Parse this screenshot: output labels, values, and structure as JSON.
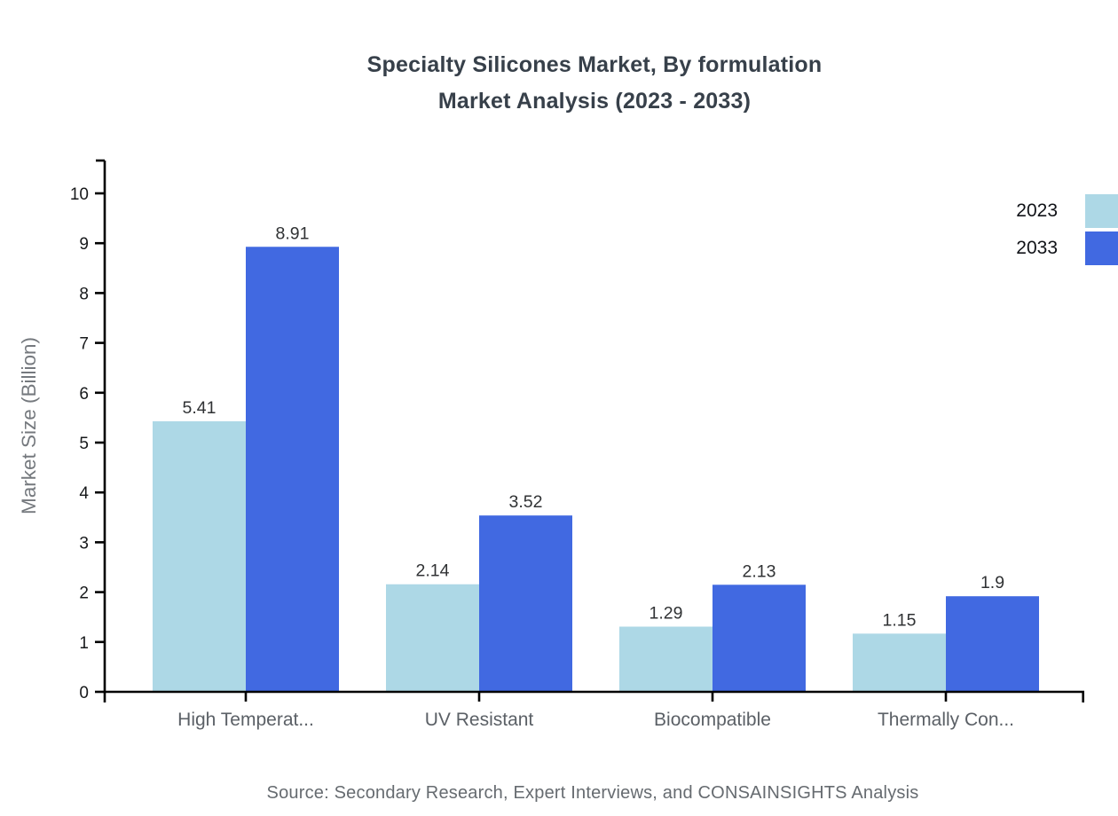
{
  "title": {
    "line1": "Specialty Silicones Market, By formulation",
    "line2": "Market Analysis (2023 - 2033)"
  },
  "source": "Source: Secondary Research, Expert Interviews, and CONSAINSIGHTS Analysis",
  "chart_data": {
    "type": "bar",
    "categories": [
      "High Temperat...",
      "UV Resistant",
      "Biocompatible",
      "Thermally Con..."
    ],
    "series": [
      {
        "name": "2023",
        "color": "#ADD8E6",
        "values": [
          5.41,
          2.14,
          1.29,
          1.15
        ]
      },
      {
        "name": "2033",
        "color": "#4169E1",
        "values": [
          8.91,
          3.52,
          2.13,
          1.9
        ]
      }
    ],
    "value_labels": [
      "5.41",
      "2.14",
      "1.29",
      "1.15",
      "8.91",
      "3.52",
      "2.13",
      "1.9"
    ],
    "ylabel": "Market Size (Billion)",
    "xlabel": "",
    "ylim": [
      0,
      10
    ],
    "y_tick_step": 1,
    "y_tick_labels": [
      "0",
      "1",
      "2",
      "3",
      "4",
      "5",
      "6",
      "7",
      "8",
      "9",
      "10"
    ],
    "grid": false,
    "legend_position": "top-right",
    "axis_color": "#000000",
    "tick_label_color": "#17191b",
    "category_label_color": "#5b6066"
  }
}
